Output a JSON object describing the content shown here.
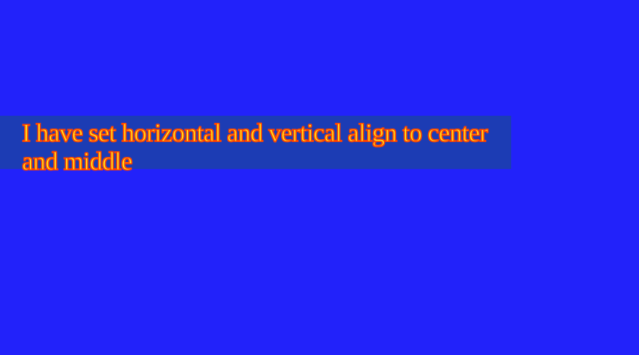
{
  "page": {
    "background_color": "#2222fa"
  },
  "text_box": {
    "text": "I have set horizontal and vertical align to center and middle",
    "background_color": "#1c3cb4",
    "text_color": "#ffe21a",
    "outline_color": "#ff4a00"
  }
}
